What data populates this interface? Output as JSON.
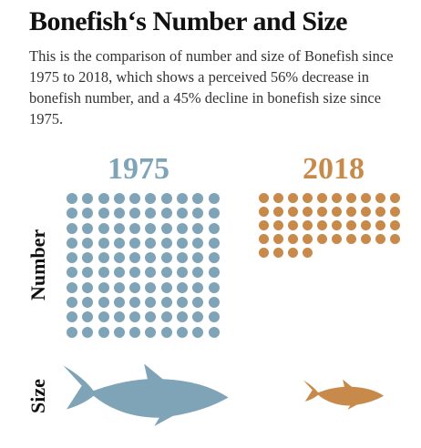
{
  "header": {
    "title": "Bonefish‘s Number and Size",
    "subtitle": "This is the comparison of number and size of Bonefish since 1975 to 2018, which shows a perceived 56% decrease in bonefish number, and a 45% decline in bonefish size since 1975."
  },
  "labels": {
    "number": "Number",
    "size": "Size"
  },
  "groups": [
    {
      "year": "1975",
      "color": "#7fa4b7",
      "dot_count": 100,
      "relative_size": 1.0
    },
    {
      "year": "2018",
      "color": "#c88a4a",
      "dot_count": 44,
      "relative_size": 0.55
    }
  ],
  "icons": {
    "fish": "bonefish-silhouette-icon",
    "dot": "circle-dot"
  }
}
